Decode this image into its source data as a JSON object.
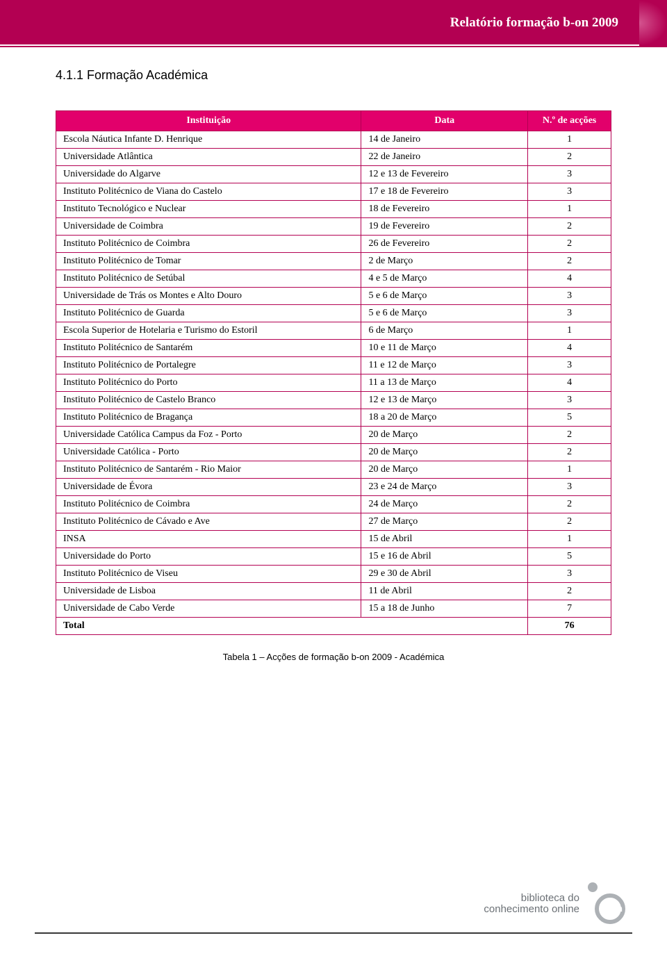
{
  "header": {
    "title": "Relatório formação b-on 2009"
  },
  "section": {
    "heading": "4.1.1  Formação Académica"
  },
  "table": {
    "columns": [
      "Instituição",
      "Data",
      "N.º de acções"
    ],
    "rows": [
      {
        "inst": "Escola Náutica Infante D. Henrique",
        "date": "14 de Janeiro",
        "num": "1"
      },
      {
        "inst": "Universidade Atlântica",
        "date": "22 de Janeiro",
        "num": "2"
      },
      {
        "inst": "Universidade do Algarve",
        "date": "12 e 13 de Fevereiro",
        "num": "3"
      },
      {
        "inst": "Instituto Politécnico de Viana do Castelo",
        "date": "17 e 18 de Fevereiro",
        "num": "3"
      },
      {
        "inst": "Instituto Tecnológico e Nuclear",
        "date": "18 de Fevereiro",
        "num": "1"
      },
      {
        "inst": "Universidade de Coimbra",
        "date": "19 de  Fevereiro",
        "num": "2"
      },
      {
        "inst": "Instituto Politécnico de Coimbra",
        "date": "26 de Fevereiro",
        "num": "2"
      },
      {
        "inst": "Instituto Politécnico de Tomar",
        "date": "2 de Março",
        "num": "2"
      },
      {
        "inst": "Instituto Politécnico de Setúbal",
        "date": "4 e 5 de Março",
        "num": "4"
      },
      {
        "inst": "Universidade de Trás os Montes e Alto Douro",
        "date": "5 e 6 de Março",
        "num": "3"
      },
      {
        "inst": "Instituto Politécnico de Guarda",
        "date": "5 e 6 de Março",
        "num": "3"
      },
      {
        "inst": "Escola Superior de Hotelaria e Turismo do  Estoril",
        "date": "6 de Março",
        "num": "1"
      },
      {
        "inst": "Instituto Politécnico de Santarém",
        "date": "10 e 11 de Março",
        "num": "4"
      },
      {
        "inst": "Instituto Politécnico de Portalegre",
        "date": "11 e 12 de Março",
        "num": "3"
      },
      {
        "inst": "Instituto Politécnico do Porto",
        "date": "11 a 13 de Março",
        "num": "4"
      },
      {
        "inst": "Instituto Politécnico de Castelo Branco",
        "date": "12 e 13 de Março",
        "num": "3"
      },
      {
        "inst": "Instituto Politécnico de Bragança",
        "date": "18 a 20 de Março",
        "num": "5"
      },
      {
        "inst": "Universidade Católica Campus da Foz - Porto",
        "date": "20 de Março",
        "num": "2"
      },
      {
        "inst": "Universidade Católica - Porto",
        "date": "20 de Março",
        "num": "2"
      },
      {
        "inst": "Instituto Politécnico de Santarém - Rio Maior",
        "date": "20 de Março",
        "num": "1"
      },
      {
        "inst": "Universidade de Évora",
        "date": "23 e 24 de Março",
        "num": "3"
      },
      {
        "inst": "Instituto Politécnico de Coimbra",
        "date": "24 de Março",
        "num": "2"
      },
      {
        "inst": "Instituto Politécnico de Cávado e Ave",
        "date": "27 de Março",
        "num": "2"
      },
      {
        "inst": "INSA",
        "date": "15 de Abril",
        "num": "1"
      },
      {
        "inst": "Universidade do Porto",
        "date": "15 e 16 de Abril",
        "num": "5"
      },
      {
        "inst": "Instituto Politécnico de Viseu",
        "date": "29 e 30 de Abril",
        "num": "3"
      },
      {
        "inst": "Universidade de Lisboa",
        "date": "11 de Abril",
        "num": "2"
      },
      {
        "inst": "Universidade de Cabo Verde",
        "date": "15 a 18 de Junho",
        "num": "7"
      }
    ],
    "total": {
      "label": "Total",
      "value": "76"
    }
  },
  "caption": "Tabela 1 – Acções de formação b-on 2009 - Académica",
  "footer": {
    "logo_line1": "biblioteca do",
    "logo_line2": "conhecimento online"
  },
  "style": {
    "brand_color": "#b30052",
    "header_pink": "#e2006b",
    "table_border": "#b30052",
    "body_font": "Palatino Linotype",
    "heading_font": "Verdana",
    "col_widths_pct": [
      55,
      30,
      15
    ]
  }
}
